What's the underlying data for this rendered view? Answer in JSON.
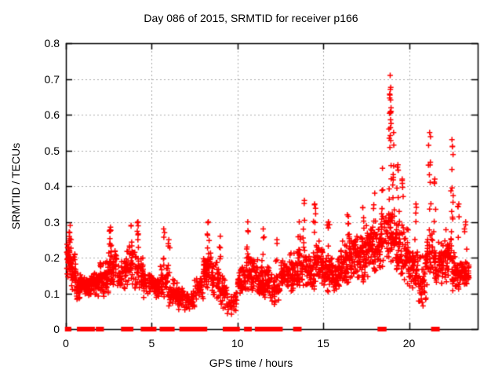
{
  "chart_data": {
    "type": "scatter",
    "title": "Day 086 of 2015, SRMTID for receiver p166",
    "xlabel": "GPS time / hours",
    "ylabel": "SRMTID / TECUs",
    "xlim": [
      0,
      24
    ],
    "ylim": [
      0,
      0.8
    ],
    "xticks": [
      0,
      5,
      10,
      15,
      20
    ],
    "xtick_labels": [
      "0",
      "5",
      "10",
      "15",
      "20"
    ],
    "yticks": [
      0,
      0.1,
      0.2,
      0.3,
      0.4,
      0.5,
      0.6,
      0.7,
      0.8
    ],
    "ytick_labels": [
      "0",
      "0.1",
      "0.2",
      "0.3",
      "0.4",
      "0.5",
      "0.6",
      "0.7",
      "0.8"
    ],
    "grid": true,
    "grid_style": "dotted",
    "grid_color": "#aaaaaa",
    "axis_color": "#000000",
    "background_color": "#ffffff",
    "marker": "plus",
    "marker_color": "#ff0000",
    "zero_marker": "filled-square",
    "zero_marker_color": "#ff0000",
    "bands_columns": [
      "t_start_hours",
      "t_end_hours",
      "y_low_TECUs",
      "y_high_TECUs",
      "point_count"
    ],
    "bands": [
      [
        0.05,
        0.3,
        0.13,
        0.26,
        40
      ],
      [
        0.3,
        0.6,
        0.1,
        0.22,
        40
      ],
      [
        0.6,
        1.0,
        0.08,
        0.16,
        50
      ],
      [
        1.0,
        1.5,
        0.08,
        0.15,
        55
      ],
      [
        1.5,
        2.0,
        0.09,
        0.17,
        55
      ],
      [
        2.0,
        2.5,
        0.08,
        0.2,
        55
      ],
      [
        2.5,
        3.0,
        0.1,
        0.24,
        55
      ],
      [
        3.0,
        3.5,
        0.1,
        0.2,
        40
      ],
      [
        3.5,
        4.0,
        0.12,
        0.24,
        40
      ],
      [
        4.0,
        4.5,
        0.1,
        0.23,
        50
      ],
      [
        4.5,
        5.0,
        0.08,
        0.18,
        40
      ],
      [
        5.0,
        5.5,
        0.08,
        0.16,
        45
      ],
      [
        5.5,
        6.0,
        0.08,
        0.19,
        40
      ],
      [
        6.0,
        6.5,
        0.06,
        0.14,
        45
      ],
      [
        6.5,
        7.0,
        0.05,
        0.12,
        45
      ],
      [
        7.0,
        7.5,
        0.05,
        0.11,
        40
      ],
      [
        7.5,
        8.0,
        0.08,
        0.16,
        35
      ],
      [
        8.0,
        8.5,
        0.1,
        0.22,
        55
      ],
      [
        8.5,
        9.0,
        0.08,
        0.2,
        50
      ],
      [
        9.0,
        9.5,
        0.04,
        0.15,
        35
      ],
      [
        9.5,
        10.0,
        0.02,
        0.12,
        25
      ],
      [
        10.0,
        10.5,
        0.08,
        0.18,
        50
      ],
      [
        10.5,
        11.0,
        0.1,
        0.22,
        50
      ],
      [
        11.0,
        11.5,
        0.08,
        0.2,
        50
      ],
      [
        11.5,
        12.0,
        0.08,
        0.18,
        50
      ],
      [
        12.0,
        12.5,
        0.06,
        0.16,
        40
      ],
      [
        12.5,
        13.0,
        0.1,
        0.2,
        50
      ],
      [
        13.0,
        13.5,
        0.1,
        0.22,
        50
      ],
      [
        13.5,
        14.0,
        0.1,
        0.24,
        45
      ],
      [
        14.0,
        14.5,
        0.1,
        0.22,
        50
      ],
      [
        14.5,
        15.0,
        0.12,
        0.25,
        50
      ],
      [
        15.0,
        15.5,
        0.1,
        0.22,
        50
      ],
      [
        15.5,
        16.0,
        0.1,
        0.2,
        50
      ],
      [
        16.0,
        16.5,
        0.12,
        0.25,
        55
      ],
      [
        16.5,
        17.0,
        0.12,
        0.27,
        55
      ],
      [
        17.0,
        17.5,
        0.12,
        0.28,
        55
      ],
      [
        17.5,
        18.0,
        0.14,
        0.3,
        55
      ],
      [
        18.0,
        18.5,
        0.15,
        0.32,
        50
      ],
      [
        18.5,
        19.0,
        0.18,
        0.35,
        45
      ],
      [
        19.0,
        19.5,
        0.15,
        0.35,
        50
      ],
      [
        19.5,
        20.0,
        0.12,
        0.3,
        50
      ],
      [
        20.0,
        20.5,
        0.1,
        0.25,
        50
      ],
      [
        20.5,
        21.0,
        0.05,
        0.22,
        45
      ],
      [
        21.0,
        21.5,
        0.12,
        0.3,
        45
      ],
      [
        21.5,
        22.0,
        0.1,
        0.25,
        50
      ],
      [
        22.0,
        22.5,
        0.12,
        0.28,
        50
      ],
      [
        22.5,
        23.0,
        0.1,
        0.22,
        55
      ],
      [
        23.0,
        23.5,
        0.12,
        0.2,
        55
      ]
    ],
    "spikes_columns": [
      "t_hours",
      "y_from_TECUs",
      "y_peak_TECUs",
      "point_count"
    ],
    "spikes": [
      [
        0.25,
        0.18,
        0.29,
        10
      ],
      [
        2.6,
        0.18,
        0.285,
        8
      ],
      [
        3.8,
        0.2,
        0.29,
        7
      ],
      [
        4.2,
        0.18,
        0.3,
        8
      ],
      [
        5.7,
        0.16,
        0.28,
        6
      ],
      [
        6.0,
        0.14,
        0.25,
        5
      ],
      [
        8.3,
        0.2,
        0.3,
        7
      ],
      [
        9.0,
        0.16,
        0.26,
        5
      ],
      [
        10.6,
        0.2,
        0.3,
        7
      ],
      [
        11.5,
        0.18,
        0.28,
        5
      ],
      [
        12.3,
        0.16,
        0.25,
        4
      ],
      [
        13.6,
        0.2,
        0.3,
        6
      ],
      [
        13.9,
        0.22,
        0.36,
        6
      ],
      [
        14.5,
        0.22,
        0.35,
        7
      ],
      [
        15.3,
        0.2,
        0.3,
        5
      ],
      [
        16.4,
        0.22,
        0.32,
        5
      ],
      [
        17.3,
        0.24,
        0.34,
        6
      ],
      [
        18.0,
        0.26,
        0.38,
        6
      ],
      [
        18.45,
        0.28,
        0.45,
        8
      ],
      [
        18.9,
        0.35,
        0.71,
        24
      ],
      [
        19.1,
        0.3,
        0.55,
        10
      ],
      [
        19.35,
        0.28,
        0.46,
        8
      ],
      [
        19.6,
        0.26,
        0.42,
        6
      ],
      [
        20.4,
        0.22,
        0.35,
        5
      ],
      [
        21.2,
        0.28,
        0.55,
        10
      ],
      [
        21.5,
        0.25,
        0.42,
        6
      ],
      [
        22.5,
        0.3,
        0.53,
        12
      ],
      [
        22.9,
        0.24,
        0.35,
        5
      ],
      [
        23.3,
        0.2,
        0.3,
        5
      ]
    ],
    "zero_segments_columns": [
      "t_start_hours",
      "t_end_hours"
    ],
    "zero_segments": [
      [
        0.08,
        0.18
      ],
      [
        0.78,
        0.84
      ],
      [
        0.98,
        1.04
      ],
      [
        1.28,
        1.55
      ],
      [
        1.88,
        1.94
      ],
      [
        2.02,
        2.08
      ],
      [
        3.35,
        3.8
      ],
      [
        4.5,
        4.85
      ],
      [
        5.08,
        5.14
      ],
      [
        5.6,
        5.85
      ],
      [
        5.95,
        6.2
      ],
      [
        6.75,
        7.15
      ],
      [
        7.22,
        7.3
      ],
      [
        7.5,
        8.1
      ],
      [
        9.28,
        9.55
      ],
      [
        9.7,
        10.0
      ],
      [
        10.52,
        10.58
      ],
      [
        10.64,
        10.7
      ],
      [
        11.15,
        11.5
      ],
      [
        11.6,
        11.85
      ],
      [
        11.98,
        12.04
      ],
      [
        12.25,
        12.5
      ],
      [
        13.38,
        13.44
      ],
      [
        13.54,
        13.6
      ],
      [
        18.3,
        18.55
      ],
      [
        21.42,
        21.65
      ]
    ]
  }
}
